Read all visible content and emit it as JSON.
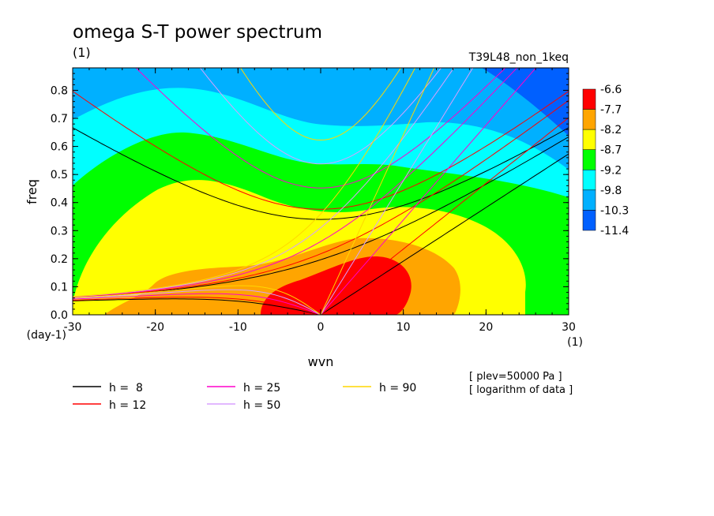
{
  "chart_data": {
    "type": "heatmap",
    "title": "omega S-T power spectrum",
    "subtitle": "(1)",
    "run_label": "T39L48_non_1keq",
    "xlabel": "wvn",
    "ylabel": "freq",
    "x_unit": "(1)",
    "y_unit": "(day-1)",
    "xlim": [
      -30,
      30
    ],
    "ylim": [
      0,
      0.88
    ],
    "x_ticks": [
      -30,
      -20,
      -10,
      0,
      10,
      20,
      30
    ],
    "y_ticks": [
      0.0,
      0.1,
      0.2,
      0.3,
      0.4,
      0.5,
      0.6,
      0.7,
      0.8
    ],
    "x_tick_labels": [
      "-30",
      "-20",
      "-10",
      "0",
      "10",
      "20",
      "30"
    ],
    "y_tick_labels": [
      "0.0",
      "0.1",
      "0.2",
      "0.3",
      "0.4",
      "0.5",
      "0.6",
      "0.7",
      "0.8"
    ],
    "colorbar": {
      "levels": [
        "-6.6",
        "-7.7",
        "-8.2",
        "-8.7",
        "-9.2",
        "-9.8",
        "-10.3",
        "-11.4"
      ],
      "colors": [
        "#ff0000",
        "#ffa500",
        "#ffff00",
        "#00ff00",
        "#00ffff",
        "#00b0ff",
        "#0060ff"
      ]
    },
    "contour_regions": [
      {
        "level_index": 6,
        "color": "#0060ff",
        "description": "top-right corner"
      },
      {
        "level_index": 5,
        "color": "#00b0ff",
        "description": "upper band"
      },
      {
        "level_index": 4,
        "color": "#00ffff",
        "description": "upper-middle band"
      },
      {
        "level_index": 3,
        "color": "#00ff00",
        "description": "middle band"
      },
      {
        "level_index": 2,
        "color": "#ffff00",
        "description": "lower band"
      },
      {
        "level_index": 1,
        "color": "#ffa500",
        "description": "low-frequency region"
      },
      {
        "level_index": 0,
        "color": "#ff0000",
        "description": "maximum near wvn 0-10"
      }
    ],
    "dispersion_curves": [
      {
        "name": "h =  8",
        "color": "#000000"
      },
      {
        "name": "h = 12",
        "color": "#ff0000"
      },
      {
        "name": "h = 25",
        "color": "#ff00cc"
      },
      {
        "name": "h = 50",
        "color": "#d8a0ff"
      },
      {
        "name": "h = 90",
        "color": "#ffd700"
      }
    ],
    "notes": [
      "[ plev=50000 Pa ]",
      "[ logarithm of data ]"
    ],
    "grid": false
  }
}
